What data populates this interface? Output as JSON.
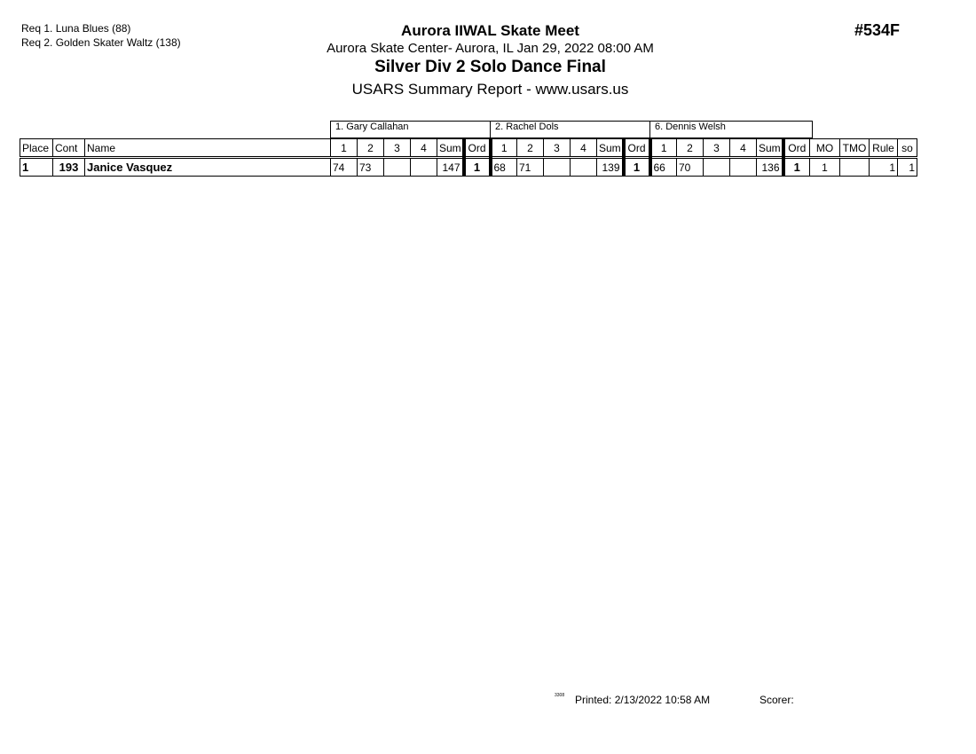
{
  "requirements": [
    "Req  1.  Luna Blues (88)",
    "Req  2.  Golden Skater Waltz (138)"
  ],
  "header": {
    "title": "Aurora IIWAL Skate Meet",
    "location": "Aurora Skate Center- Aurora, IL  Jan 29, 2022  08:00 AM",
    "event": "Silver Div 2 Solo Dance Final",
    "report": "USARS Summary Report - www.usars.us",
    "event_number": "#534F"
  },
  "judges": [
    "1.  Gary Callahan",
    "2.  Rachel Dols",
    "6.  Dennis Welsh"
  ],
  "columns": {
    "place": "Place",
    "cont": "Cont",
    "name": "Name",
    "s1": "1",
    "s2": "2",
    "s3": "3",
    "s4": "4",
    "sum": "Sum",
    "ord": "Ord",
    "mo": "MO",
    "tmo": "TMO",
    "rule": "Rule",
    "so": "so"
  },
  "rows": [
    {
      "place": "1",
      "cont": "193",
      "name": "Janice Vasquez",
      "judges": [
        {
          "s1": "74",
          "s2": "73",
          "s3": "",
          "s4": "",
          "sum": "147",
          "ord": "1"
        },
        {
          "s1": "68",
          "s2": "71",
          "s3": "",
          "s4": "",
          "sum": "139",
          "ord": "1"
        },
        {
          "s1": "66",
          "s2": "70",
          "s3": "",
          "s4": "",
          "sum": "136",
          "ord": "1"
        }
      ],
      "mo": "1",
      "tmo": "",
      "rule": "1",
      "so": "1"
    }
  ],
  "footer": {
    "code": "3308",
    "printed": "Printed:  2/13/2022  10:58 AM",
    "scorer": "Scorer:"
  }
}
